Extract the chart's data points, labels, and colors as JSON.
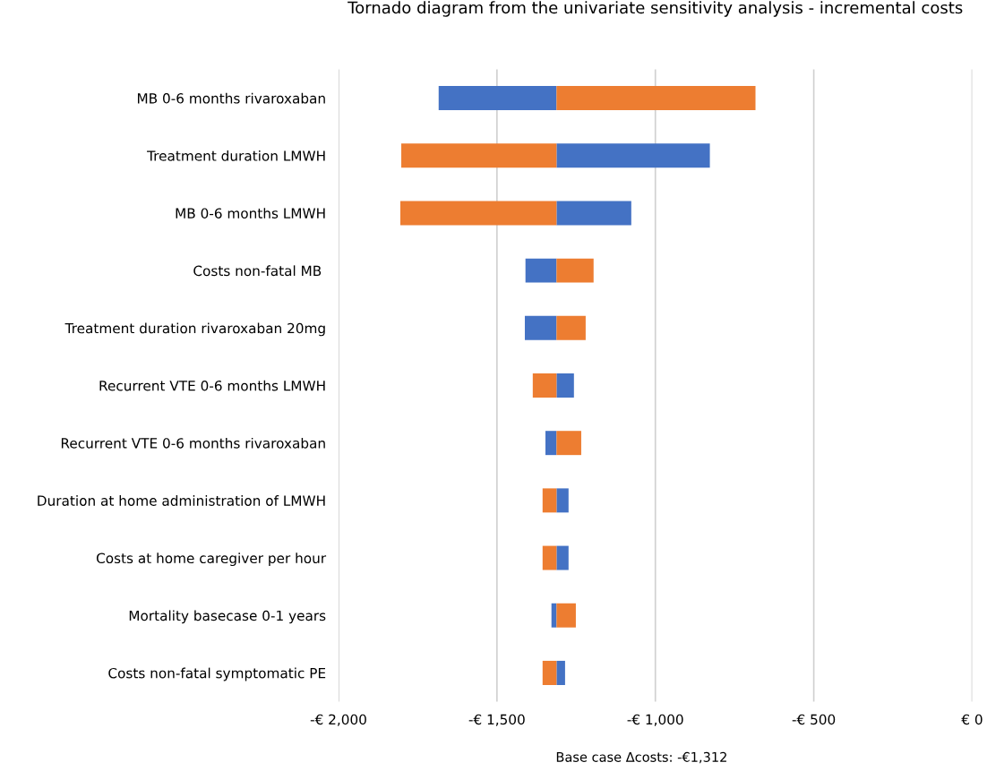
{
  "chart_data": {
    "type": "bar",
    "orientation": "horizontal",
    "title": "Tornado diagram from the univariate sensitivity analysis - incremental costs",
    "categories": [
      "MB 0-6 months rivaroxaban",
      "Treatment duration LMWH",
      "MB 0-6 months LMWH",
      "Costs non-fatal MB ",
      "Treatment duration rivaroxaban 20mg",
      "Recurrent VTE 0-6 months LMWH",
      "Recurrent VTE 0-6 months rivaroxaban",
      "Duration at home administration of LMWH",
      "Costs at home caregiver per hour",
      "Mortality basecase 0-1 years",
      "Costs non-fatal symptomatic PE"
    ],
    "series": [
      {
        "color": "#4472c4",
        "base": [
          -1312,
          -1312,
          -1312,
          -1312,
          -1312,
          -1312,
          -1312,
          -1312,
          -1312,
          -1312,
          -1312
        ],
        "values": [
          -372,
          484,
          236,
          -98,
          -100,
          55,
          -35,
          38,
          38,
          -16,
          27
        ]
      },
      {
        "color": "#ed7d31",
        "base": [
          -1312,
          -1312,
          -1312,
          -1312,
          -1312,
          -1312,
          -1312,
          -1312,
          -1312,
          -1312,
          -1312
        ],
        "values": [
          628,
          -490,
          -493,
          117,
          92,
          -75,
          78,
          -44,
          -44,
          61,
          -44
        ]
      }
    ],
    "xlim": [
      -2000,
      0
    ],
    "xticks": [
      {
        "value": -2000,
        "label": "-€ 2,000"
      },
      {
        "value": -1500,
        "label": "-€ 1,500"
      },
      {
        "value": -1000,
        "label": "-€ 1,000"
      },
      {
        "value": -500,
        "label": "-€ 500"
      },
      {
        "value": 0,
        "label": "€ 0"
      }
    ],
    "grid": "x",
    "annotations": [
      "Base case Δcosts: -€1,312"
    ]
  }
}
